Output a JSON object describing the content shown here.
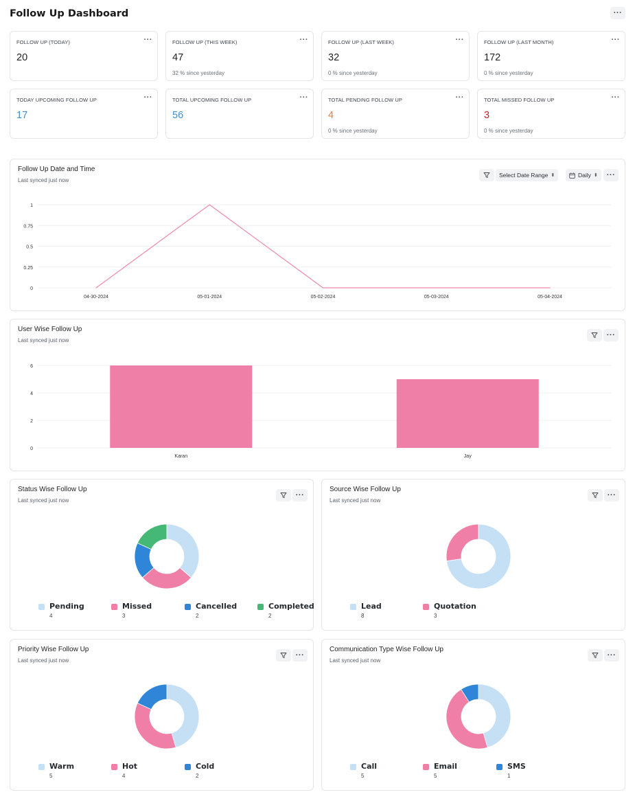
{
  "page": {
    "title": "Follow Up Dashboard"
  },
  "stats": [
    {
      "label": "FOLLOW UP (TODAY)",
      "value": "20",
      "sub": "",
      "color": "#222222"
    },
    {
      "label": "FOLLOW UP (THIS WEEK)",
      "value": "47",
      "sub": "32 % since yesterday",
      "color": "#222222"
    },
    {
      "label": "FOLLOW UP (LAST WEEK)",
      "value": "32",
      "sub": "0 % since yesterday",
      "color": "#222222"
    },
    {
      "label": "FOLLOW UP (LAST MONTH)",
      "value": "172",
      "sub": "0 % since yesterday",
      "color": "#222222"
    },
    {
      "label": "TODAY UPCOMING FOLLOW UP",
      "value": "17",
      "sub": "",
      "color": "#3b8fd6"
    },
    {
      "label": "TOTAL UPCOMING FOLLOW UP",
      "value": "56",
      "sub": "",
      "color": "#3b8fd6"
    },
    {
      "label": "TOTAL PENDING FOLLOW UP",
      "value": "4",
      "sub": "0 % since yesterday",
      "color": "#f07a3a"
    },
    {
      "label": "TOTAL MISSED FOLLOW UP",
      "value": "3",
      "sub": "0 % since yesterday",
      "color": "#c62828"
    }
  ],
  "icons": {
    "more": "more-icon",
    "filter": "filter-icon",
    "calendar": "calendar-icon",
    "caret": "up-down-caret-icon"
  },
  "colors": {
    "pink": "#f07fa8",
    "pinkLine": "#ee8aa8",
    "lightBlue": "#c5dff5",
    "blue": "#2f86d8",
    "green": "#44b874"
  },
  "charts": {
    "date_time": {
      "title": "Follow Up Date and Time",
      "synced": "Last synced just now",
      "date_range_label": "Select Date Range",
      "period_label": "Daily"
    },
    "user_wise": {
      "title": "User Wise Follow Up",
      "synced": "Last synced just now"
    },
    "status_wise": {
      "title": "Status Wise Follow Up",
      "synced": "Last synced just now"
    },
    "source_wise": {
      "title": "Source Wise Follow Up",
      "synced": "Last synced just now"
    },
    "priority_wise": {
      "title": "Priority Wise Follow Up",
      "synced": "Last synced just now"
    },
    "communication_wise": {
      "title": "Communication Type Wise Follow Up",
      "synced": "Last synced just now"
    }
  },
  "chart_data": [
    {
      "type": "line",
      "title": "Follow Up Date and Time",
      "categories": [
        "04-30-2024",
        "05-01-2024",
        "05-02-2024",
        "05-03-2024",
        "05-04-2024"
      ],
      "values": [
        0,
        1,
        0,
        0,
        0
      ],
      "yticks": [
        "0",
        "0.25",
        "0.5",
        "0.75",
        "1"
      ],
      "ylim": [
        0,
        1
      ],
      "grid": true
    },
    {
      "type": "bar",
      "title": "User Wise Follow Up",
      "categories": [
        "Karan",
        "Jay"
      ],
      "values": [
        6,
        5
      ],
      "yticks": [
        "0",
        "2",
        "4",
        "6"
      ],
      "ylim": [
        0,
        6
      ],
      "grid": true
    },
    {
      "type": "pie",
      "title": "Status Wise Follow Up",
      "series": [
        {
          "name": "Pending",
          "value": 4,
          "color": "#c5dff5"
        },
        {
          "name": "Missed",
          "value": 3,
          "color": "#f07fa8"
        },
        {
          "name": "Cancelled",
          "value": 2,
          "color": "#2f86d8"
        },
        {
          "name": "Completed",
          "value": 2,
          "color": "#44b874"
        }
      ]
    },
    {
      "type": "pie",
      "title": "Source Wise Follow Up",
      "series": [
        {
          "name": "Lead",
          "value": 8,
          "color": "#c5dff5"
        },
        {
          "name": "Quotation",
          "value": 3,
          "color": "#f07fa8"
        }
      ]
    },
    {
      "type": "pie",
      "title": "Priority Wise Follow Up",
      "series": [
        {
          "name": "Warm",
          "value": 5,
          "color": "#c5dff5"
        },
        {
          "name": "Hot",
          "value": 4,
          "color": "#f07fa8"
        },
        {
          "name": "Cold",
          "value": 2,
          "color": "#2f86d8"
        }
      ]
    },
    {
      "type": "pie",
      "title": "Communication Type Wise Follow Up",
      "series": [
        {
          "name": "Call",
          "value": 5,
          "color": "#c5dff5"
        },
        {
          "name": "Email",
          "value": 5,
          "color": "#f07fa8"
        },
        {
          "name": "SMS",
          "value": 1,
          "color": "#2f86d8"
        }
      ]
    }
  ]
}
